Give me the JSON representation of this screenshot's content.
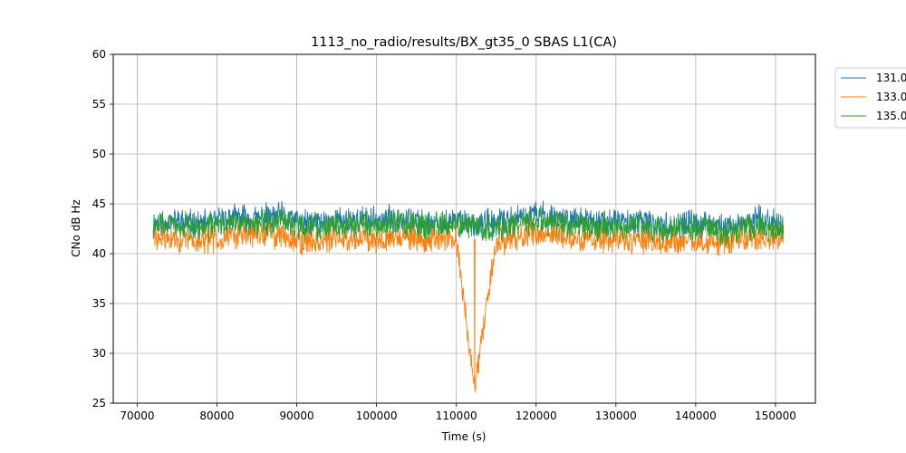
{
  "chart_data": {
    "type": "line",
    "title": "1113_no_radio/results/BX_gt35_0 SBAS L1(CA)",
    "xlabel": "Time (s)",
    "ylabel": "CNo dB Hz",
    "xlim": [
      67000,
      155000
    ],
    "ylim": [
      25,
      60
    ],
    "x_ticks": [
      70000,
      80000,
      90000,
      100000,
      110000,
      120000,
      130000,
      140000,
      150000
    ],
    "y_ticks": [
      25,
      30,
      35,
      40,
      45,
      50,
      55,
      60
    ],
    "grid": true,
    "legend_position": "outside-top-right",
    "series": [
      {
        "name": "131.0",
        "color": "#1f77b4",
        "x_range": [
          72000,
          151000
        ],
        "values": [
          [
            72000,
            43.1
          ],
          [
            75000,
            43.3
          ],
          [
            78000,
            42.9
          ],
          [
            82000,
            43.6
          ],
          [
            85000,
            43.5
          ],
          [
            88000,
            43.8
          ],
          [
            91000,
            43.0
          ],
          [
            95000,
            43.3
          ],
          [
            100000,
            43.3
          ],
          [
            103000,
            43.6
          ],
          [
            106000,
            43.0
          ],
          [
            110000,
            43.2
          ],
          [
            112300,
            43.0
          ],
          [
            115000,
            43.0
          ],
          [
            120000,
            43.9
          ],
          [
            123000,
            43.6
          ],
          [
            127000,
            43.1
          ],
          [
            132000,
            43.2
          ],
          [
            136000,
            42.7
          ],
          [
            140000,
            43.0
          ],
          [
            144000,
            42.6
          ],
          [
            148000,
            43.4
          ],
          [
            151000,
            42.8
          ]
        ]
      },
      {
        "name": "133.0",
        "color": "#ff7f0e",
        "x_range": [
          72000,
          151000
        ],
        "values": [
          [
            72000,
            41.6
          ],
          [
            75000,
            41.4
          ],
          [
            78000,
            41.2
          ],
          [
            82000,
            41.9
          ],
          [
            85000,
            42.0
          ],
          [
            88000,
            41.9
          ],
          [
            91000,
            41.2
          ],
          [
            95000,
            41.5
          ],
          [
            100000,
            41.6
          ],
          [
            103000,
            41.8
          ],
          [
            106000,
            41.3
          ],
          [
            110000,
            41.5
          ],
          [
            112300,
            26.4
          ],
          [
            115000,
            41.2
          ],
          [
            120000,
            42.1
          ],
          [
            123000,
            41.8
          ],
          [
            127000,
            41.3
          ],
          [
            132000,
            41.4
          ],
          [
            136000,
            41.0
          ],
          [
            140000,
            41.2
          ],
          [
            144000,
            41.2
          ],
          [
            148000,
            41.5
          ],
          [
            151000,
            41.8
          ]
        ]
      },
      {
        "name": "135.0",
        "color": "#2ca02c",
        "x_range": [
          72000,
          151000
        ],
        "values": [
          [
            72000,
            42.8
          ],
          [
            75000,
            43.0
          ],
          [
            78000,
            42.6
          ],
          [
            82000,
            43.2
          ],
          [
            85000,
            43.1
          ],
          [
            88000,
            43.3
          ],
          [
            91000,
            42.7
          ],
          [
            95000,
            42.9
          ],
          [
            100000,
            42.9
          ],
          [
            103000,
            43.2
          ],
          [
            106000,
            42.7
          ],
          [
            110000,
            42.9
          ],
          [
            112300,
            42.6
          ],
          [
            115000,
            42.6
          ],
          [
            120000,
            43.4
          ],
          [
            123000,
            43.2
          ],
          [
            127000,
            42.7
          ],
          [
            132000,
            42.8
          ],
          [
            136000,
            42.3
          ],
          [
            140000,
            42.6
          ],
          [
            144000,
            42.2
          ],
          [
            148000,
            43.0
          ],
          [
            151000,
            42.4
          ]
        ]
      }
    ]
  }
}
